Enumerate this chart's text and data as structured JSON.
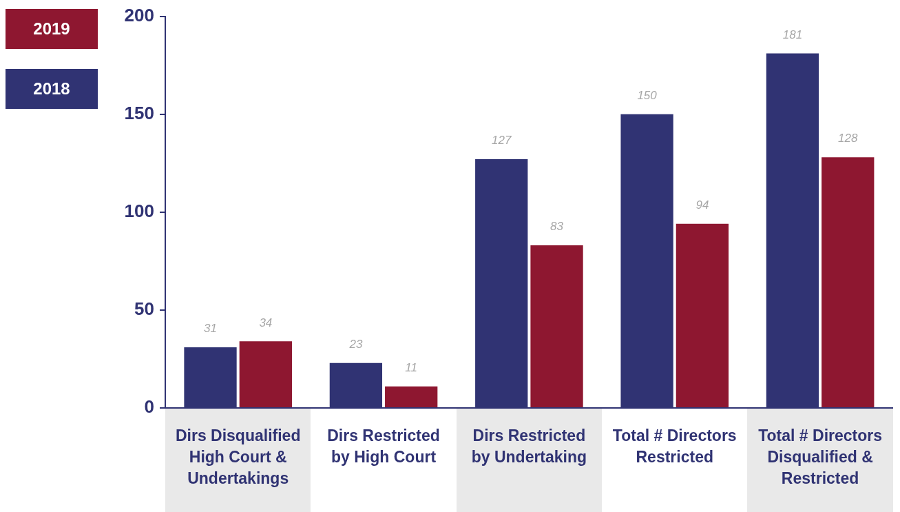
{
  "chart_data": {
    "type": "bar",
    "categories": [
      "Dirs Disqualified High Court & Undertakings",
      "Dirs Restricted by High Court",
      "Dirs Restricted by Undertaking",
      "Total # Directors Restricted",
      "Total # Directors Disqualified & Restricted"
    ],
    "series": [
      {
        "name": "2018",
        "color": "#303373",
        "values": [
          31,
          23,
          127,
          150,
          181
        ]
      },
      {
        "name": "2019",
        "color": "#8e1730",
        "values": [
          34,
          11,
          83,
          94,
          128
        ]
      }
    ],
    "ylim": [
      0,
      200
    ],
    "yticks": [
      0,
      50,
      100,
      150,
      200
    ],
    "grid": false,
    "legend": "top left",
    "data_labels": true
  }
}
